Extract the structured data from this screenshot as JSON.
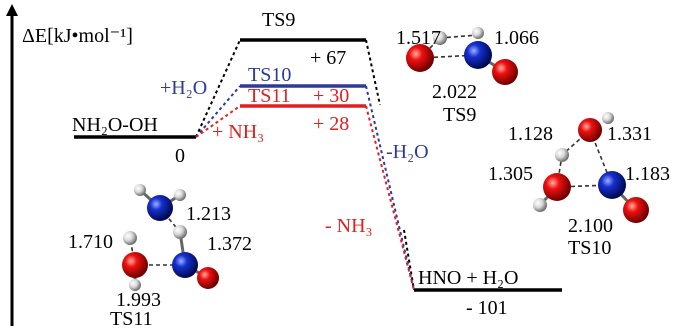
{
  "axis_label": "ΔE[kJ•mol⁻¹]",
  "levels": [
    {
      "label": "NH₂O-OH",
      "energy": "0"
    },
    {
      "label": "TS9",
      "energy": "+ 67"
    },
    {
      "label": "TS10",
      "energy": "+ 30"
    },
    {
      "label": "TS11",
      "energy": "+ 28"
    },
    {
      "label": "HNO + H₂O",
      "energy": "- 101"
    }
  ],
  "annotations": [
    "+H₂O",
    "+ NH₃",
    "-H₂O",
    "- NH₃"
  ],
  "structures": [
    {
      "label": "TS9",
      "distances": [
        "1.517",
        "1.066",
        "2.022"
      ]
    },
    {
      "label": "TS10",
      "distances": [
        "1.128",
        "1.331",
        "1.305",
        "1.183",
        "2.100"
      ]
    },
    {
      "label": "TS11",
      "distances": [
        "1.213",
        "1.710",
        "1.372",
        "1.993"
      ]
    }
  ]
}
